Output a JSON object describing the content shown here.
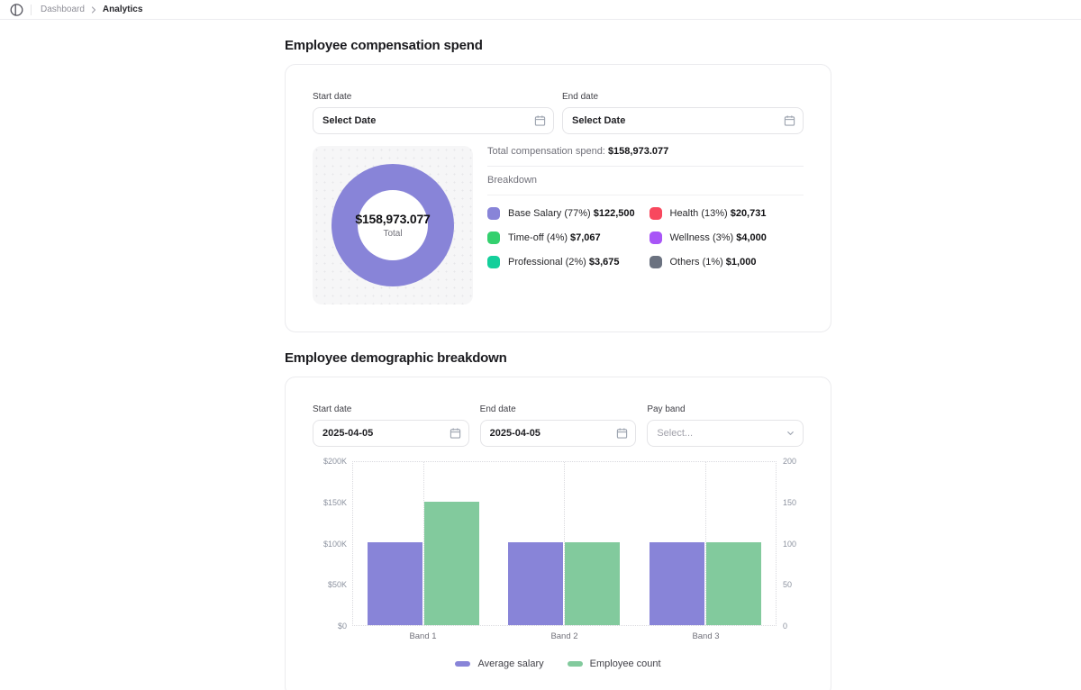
{
  "topbar": {
    "breadcrumb": {
      "parent": "Dashboard",
      "current": "Analytics"
    }
  },
  "compensation": {
    "title": "Employee compensation spend",
    "start_date": {
      "label": "Start date",
      "placeholder": "Select Date"
    },
    "end_date": {
      "label": "End date",
      "placeholder": "Select Date"
    },
    "total_label": "Total compensation spend:",
    "total_value": "$158,973.077",
    "breakdown_label": "Breakdown",
    "donut_center": {
      "value": "$158,973.077",
      "label": "Total"
    }
  },
  "demographic": {
    "title": "Employee demographic breakdown",
    "start_date": {
      "label": "Start date",
      "value": "2025-04-05"
    },
    "end_date": {
      "label": "End date",
      "value": "2025-04-05"
    },
    "pay_band": {
      "label": "Pay band",
      "placeholder": "Select..."
    }
  },
  "chart_data": [
    {
      "type": "pie",
      "title": "Employee compensation spend breakdown",
      "labels": [
        "Base Salary",
        "Health",
        "Time-off",
        "Wellness",
        "Professional",
        "Others"
      ],
      "percents": [
        77,
        13,
        4,
        3,
        2,
        1
      ],
      "values": [
        122500,
        20731,
        7067,
        4000,
        3675,
        1000
      ],
      "display_labels": [
        "Base Salary (77%)",
        "Health (13%)",
        "Time-off (4%)",
        "Wellness (3%)",
        "Professional (2%)",
        "Others (1%)"
      ],
      "display_values": [
        "$122,500",
        "$20,731",
        "$7,067",
        "$4,000",
        "$3,675",
        "$1,000"
      ],
      "colors": [
        "#8884d8",
        "#f8485e",
        "#34d06e",
        "#a855f7",
        "#14cf9b",
        "#6b7280"
      ],
      "center_value": "$158,973.077",
      "center_label": "Total",
      "draw_order": [
        0,
        5,
        4,
        3,
        2,
        1
      ],
      "start_angle_deg": 180
    },
    {
      "type": "bar",
      "categories": [
        "Band 1",
        "Band 2",
        "Band 3"
      ],
      "series": [
        {
          "name": "Average salary",
          "values": [
            100000,
            100000,
            100000
          ],
          "color": "#8884d8",
          "axis": "left"
        },
        {
          "name": "Employee count",
          "values": [
            150,
            100,
            100
          ],
          "color": "#82ca9d",
          "axis": "right"
        }
      ],
      "left_axis": {
        "ticks": [
          "$200K",
          "$150K",
          "$100K",
          "$50K",
          "$0"
        ],
        "min": 0,
        "max": 200000
      },
      "right_axis": {
        "ticks": [
          "200",
          "150",
          "100",
          "50",
          "0"
        ],
        "min": 0,
        "max": 200
      },
      "grid": "vertical-dotted",
      "legend_position": "bottom"
    }
  ]
}
